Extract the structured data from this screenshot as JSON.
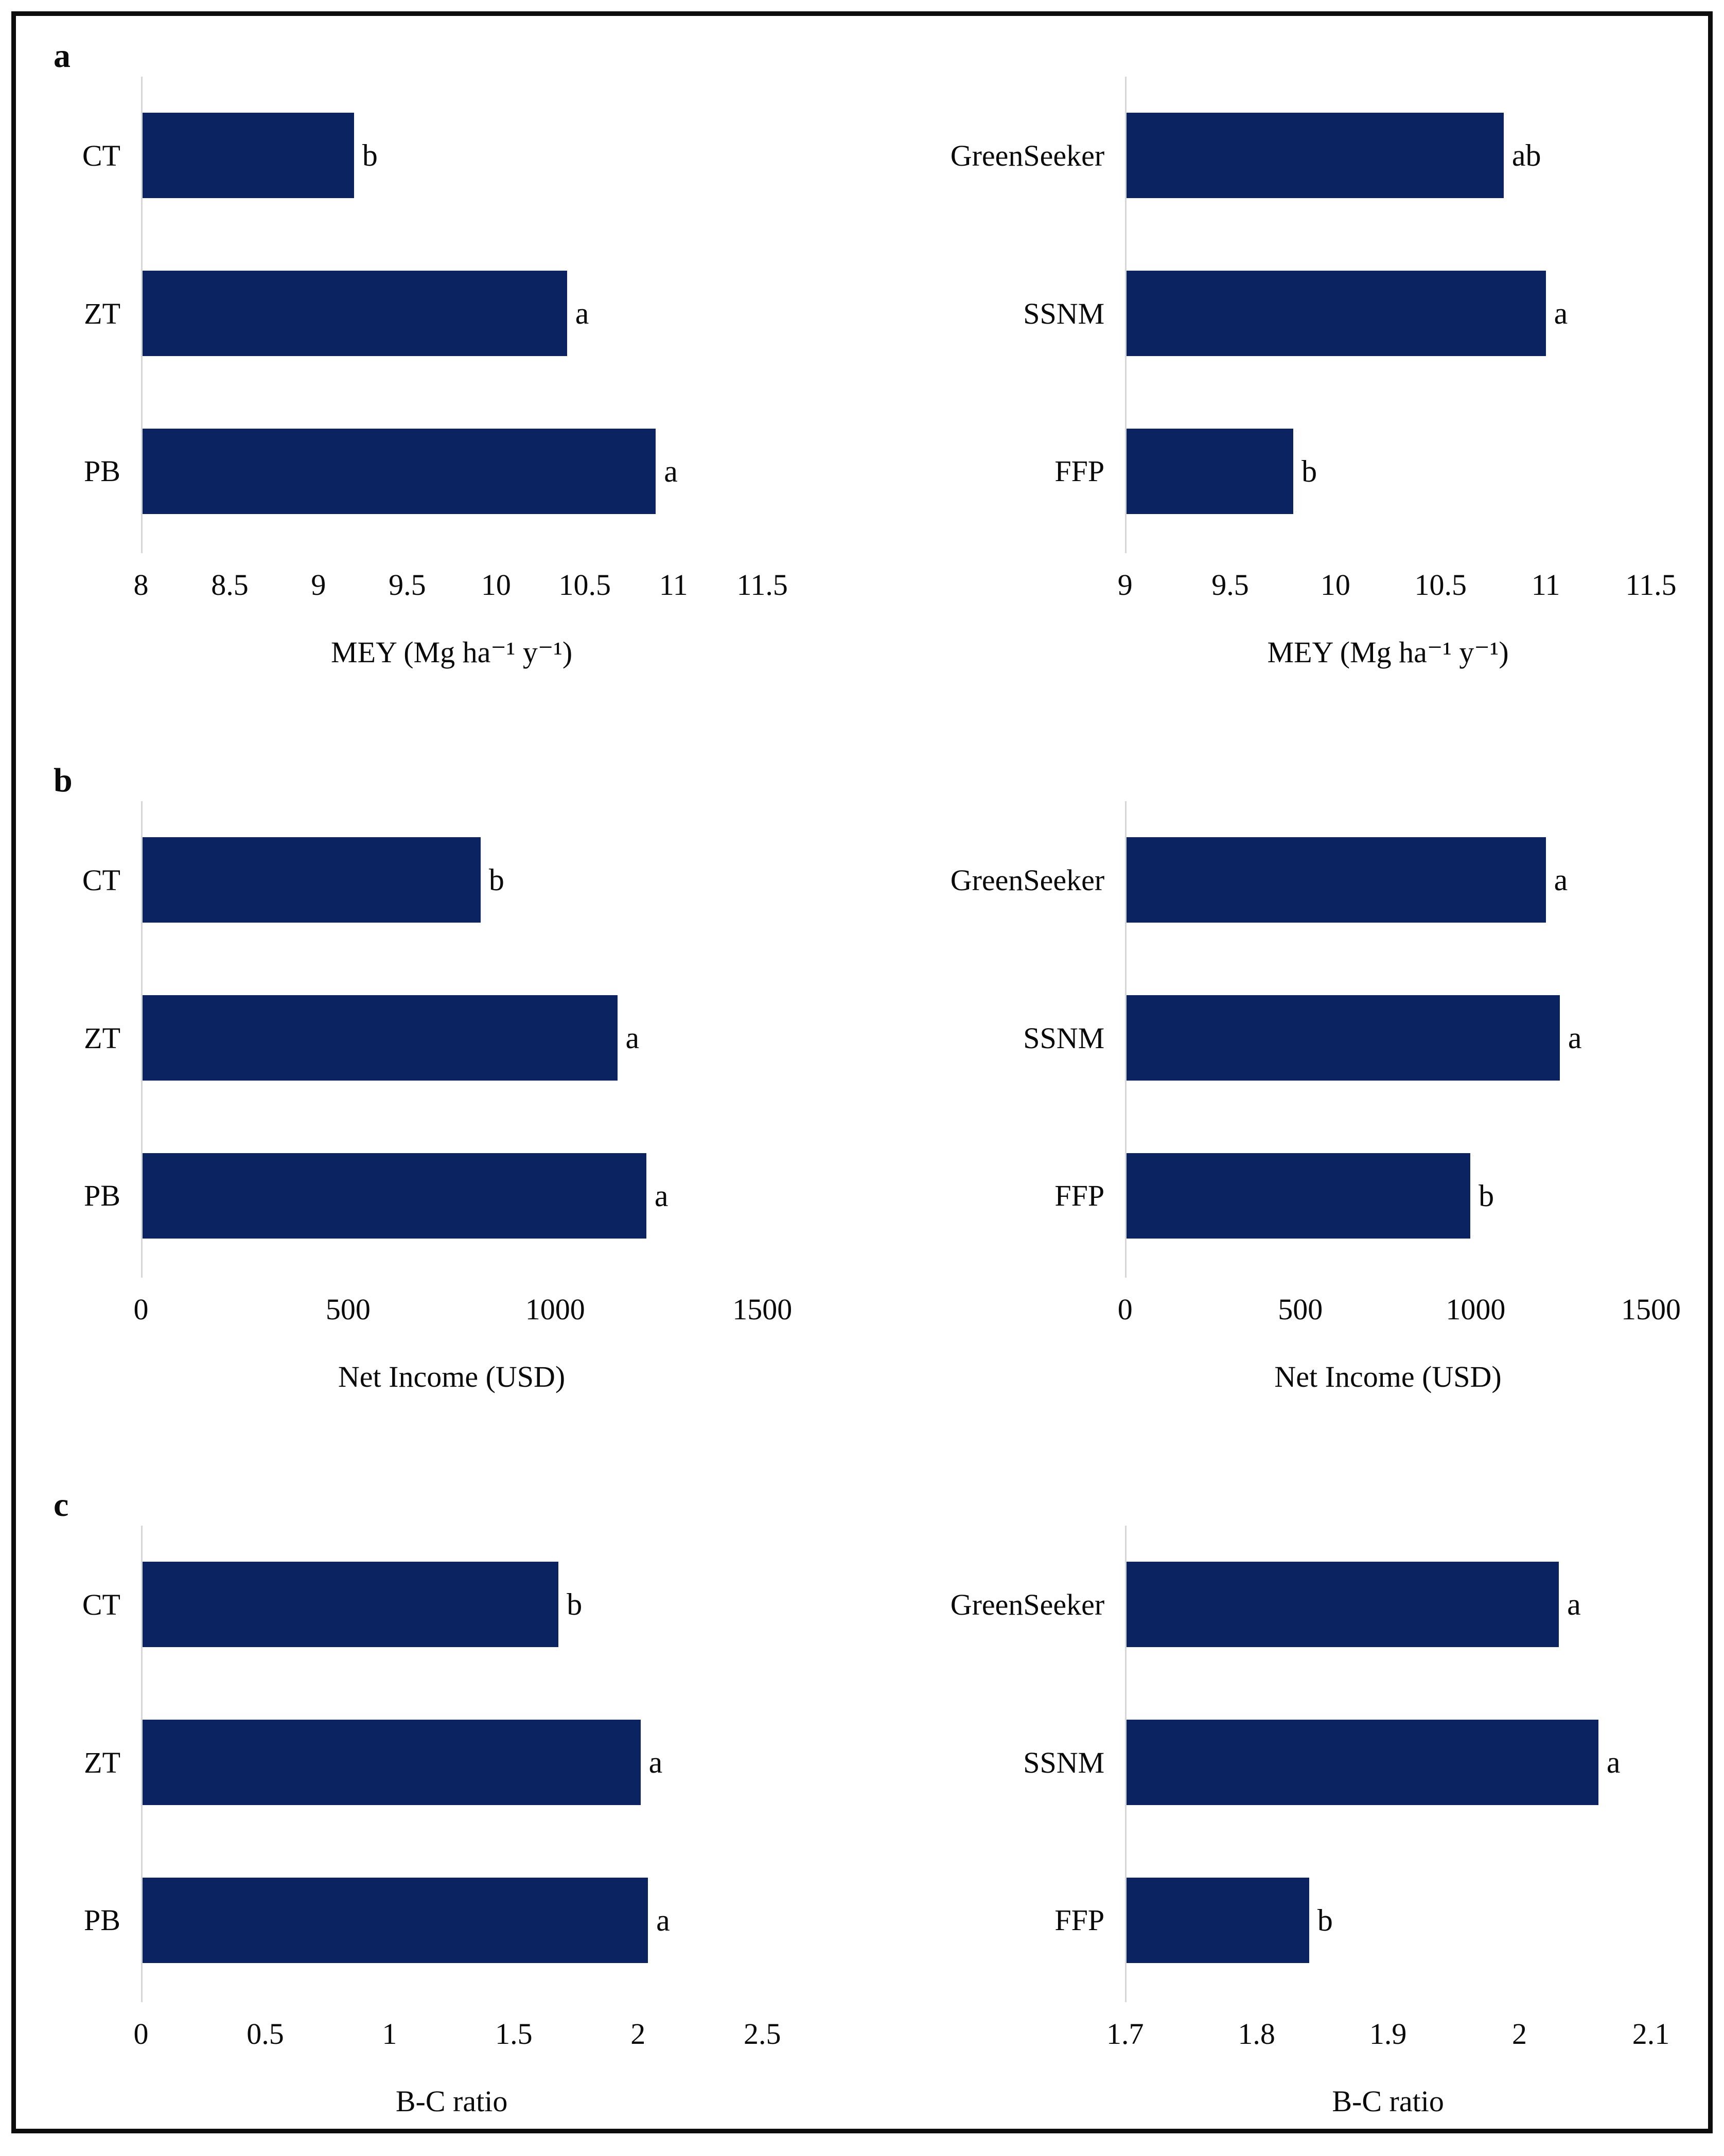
{
  "figure": {
    "bar_color": "#0b2361",
    "axis_color": "#d6d6d6",
    "frame_color": "#0d0d0d",
    "panels": [
      {
        "label": "a"
      },
      {
        "label": "b"
      },
      {
        "label": "c"
      }
    ]
  },
  "chart_data": [
    {
      "type": "bar",
      "orientation": "horizontal",
      "panel": "a",
      "position": "left",
      "categories": [
        "CT",
        "ZT",
        "PB"
      ],
      "values": [
        9.2,
        10.4,
        10.9
      ],
      "sig_labels": [
        "b",
        "a",
        "a"
      ],
      "xlabel": "MEY (Mg ha⁻¹ y⁻¹)",
      "xticks": [
        8,
        8.5,
        9,
        9.5,
        10,
        10.5,
        11,
        11.5
      ],
      "xlim": [
        8,
        11.5
      ],
      "grid": false,
      "legend": false
    },
    {
      "type": "bar",
      "orientation": "horizontal",
      "panel": "a",
      "position": "right",
      "categories": [
        "GreenSeeker",
        "SSNM",
        "FFP"
      ],
      "values": [
        10.8,
        11.0,
        9.8
      ],
      "sig_labels": [
        "ab",
        "a",
        "b"
      ],
      "xlabel": "MEY (Mg ha⁻¹ y⁻¹)",
      "xticks": [
        9,
        9.5,
        10,
        10.5,
        11,
        11.5
      ],
      "xlim": [
        9,
        11.5
      ],
      "grid": false,
      "legend": false
    },
    {
      "type": "bar",
      "orientation": "horizontal",
      "panel": "b",
      "position": "left",
      "categories": [
        "CT",
        "ZT",
        "PB"
      ],
      "values": [
        820,
        1150,
        1220
      ],
      "sig_labels": [
        "b",
        "a",
        "a"
      ],
      "xlabel": "Net Income (USD)",
      "xticks": [
        0,
        500,
        1000,
        1500
      ],
      "xlim": [
        0,
        1500
      ],
      "grid": false,
      "legend": false
    },
    {
      "type": "bar",
      "orientation": "horizontal",
      "panel": "b",
      "position": "right",
      "categories": [
        "GreenSeeker",
        "SSNM",
        "FFP"
      ],
      "values": [
        1200,
        1240,
        985
      ],
      "sig_labels": [
        "a",
        "a",
        "b"
      ],
      "xlabel": "Net Income (USD)",
      "xticks": [
        0,
        500,
        1000,
        1500
      ],
      "xlim": [
        0,
        1500
      ],
      "grid": false,
      "legend": false
    },
    {
      "type": "bar",
      "orientation": "horizontal",
      "panel": "c",
      "position": "left",
      "categories": [
        "CT",
        "ZT",
        "PB"
      ],
      "values": [
        1.68,
        2.01,
        2.04
      ],
      "sig_labels": [
        "b",
        "a",
        "a"
      ],
      "xlabel": "B-C ratio",
      "xticks": [
        0,
        0.5,
        1,
        1.5,
        2,
        2.5
      ],
      "xlim": [
        0,
        2.5
      ],
      "grid": false,
      "legend": false
    },
    {
      "type": "bar",
      "orientation": "horizontal",
      "panel": "c",
      "position": "right",
      "categories": [
        "GreenSeeker",
        "SSNM",
        "FFP"
      ],
      "values": [
        2.03,
        2.06,
        1.84
      ],
      "sig_labels": [
        "a",
        "a",
        "b"
      ],
      "xlabel": "B-C ratio",
      "xticks": [
        1.7,
        1.8,
        1.9,
        2,
        2.1
      ],
      "xlim": [
        1.7,
        2.1
      ],
      "grid": false,
      "legend": false
    }
  ]
}
